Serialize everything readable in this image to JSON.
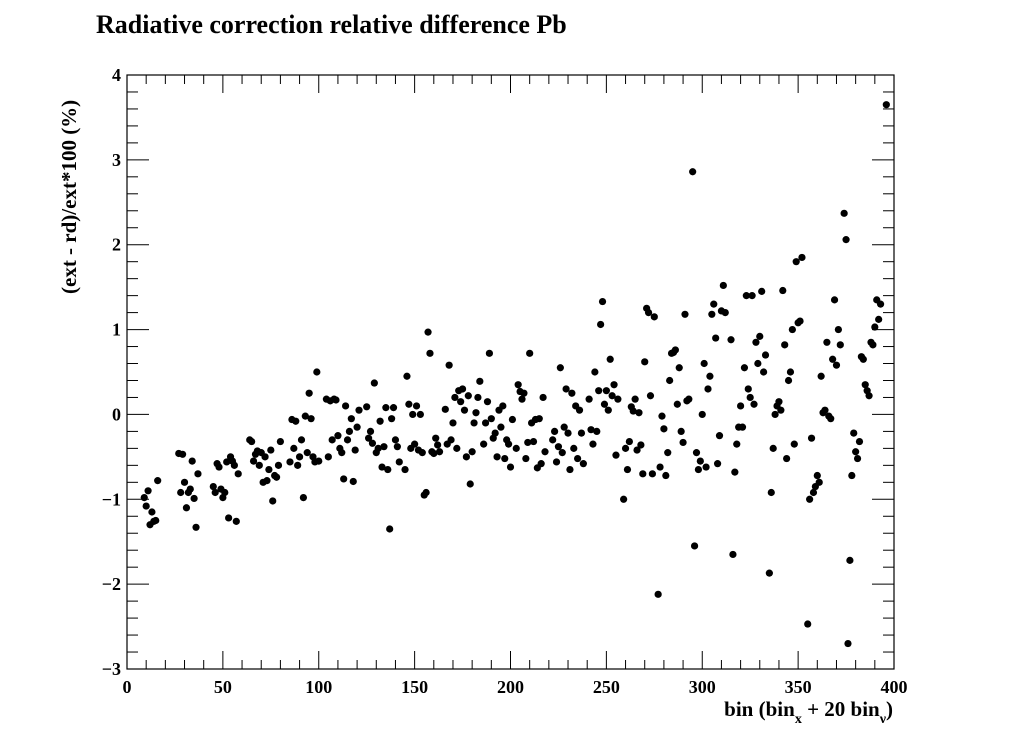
{
  "chart_data": {
    "type": "scatter",
    "title": "Radiative correction relative difference Pb",
    "xlabel": {
      "main": "bin (bin",
      "sub1": "x",
      "mid": " + 20 bin",
      "sub2": "ν",
      "end": ")"
    },
    "ylabel": "(ext - rd)/ext*100 (%)",
    "xlim": [
      0,
      400
    ],
    "ylim": [
      -3,
      4
    ],
    "xticks": [
      0,
      50,
      100,
      150,
      200,
      250,
      300,
      350,
      400
    ],
    "yticks": [
      -3,
      -2,
      -1,
      0,
      1,
      2,
      3,
      4
    ],
    "grid": false,
    "marker_color": "#000000",
    "points": [
      [
        9,
        -0.98
      ],
      [
        10,
        -1.08
      ],
      [
        11,
        -0.9
      ],
      [
        12,
        -1.3
      ],
      [
        13,
        -1.15
      ],
      [
        14,
        -1.26
      ],
      [
        15,
        -1.25
      ],
      [
        16,
        -0.78
      ],
      [
        27,
        -0.46
      ],
      [
        28,
        -0.92
      ],
      [
        29,
        -0.47
      ],
      [
        30,
        -0.8
      ],
      [
        31,
        -1.1
      ],
      [
        32,
        -0.92
      ],
      [
        33,
        -0.88
      ],
      [
        34,
        -0.55
      ],
      [
        35,
        -0.99
      ],
      [
        36,
        -1.33
      ],
      [
        37,
        -0.7
      ],
      [
        45,
        -0.85
      ],
      [
        46,
        -0.92
      ],
      [
        47,
        -0.58
      ],
      [
        48,
        -0.62
      ],
      [
        49,
        -0.88
      ],
      [
        50,
        -0.98
      ],
      [
        51,
        -0.92
      ],
      [
        52,
        -0.56
      ],
      [
        53,
        -1.22
      ],
      [
        54,
        -0.5
      ],
      [
        55,
        -0.55
      ],
      [
        56,
        -0.6
      ],
      [
        57,
        -1.26
      ],
      [
        58,
        -0.7
      ],
      [
        64,
        -0.3
      ],
      [
        65,
        -0.32
      ],
      [
        66,
        -0.55
      ],
      [
        67,
        -0.47
      ],
      [
        68,
        -0.43
      ],
      [
        69,
        -0.6
      ],
      [
        70,
        -0.45
      ],
      [
        71,
        -0.8
      ],
      [
        72,
        -0.5
      ],
      [
        73,
        -0.78
      ],
      [
        74,
        -0.65
      ],
      [
        75,
        -0.42
      ],
      [
        76,
        -1.02
      ],
      [
        77,
        -0.72
      ],
      [
        78,
        -0.74
      ],
      [
        79,
        -0.6
      ],
      [
        80,
        -0.32
      ],
      [
        85,
        -0.56
      ],
      [
        86,
        -0.06
      ],
      [
        87,
        -0.4
      ],
      [
        88,
        -0.08
      ],
      [
        89,
        -0.6
      ],
      [
        90,
        -0.5
      ],
      [
        91,
        -0.3
      ],
      [
        92,
        -0.98
      ],
      [
        93,
        -0.02
      ],
      [
        94,
        -0.45
      ],
      [
        95,
        0.25
      ],
      [
        96,
        -0.05
      ],
      [
        97,
        -0.5
      ],
      [
        98,
        -0.56
      ],
      [
        99,
        0.5
      ],
      [
        100,
        -0.55
      ],
      [
        104,
        0.18
      ],
      [
        105,
        -0.5
      ],
      [
        106,
        0.16
      ],
      [
        107,
        -0.3
      ],
      [
        108,
        0.18
      ],
      [
        109,
        0.17
      ],
      [
        110,
        -0.25
      ],
      [
        111,
        -0.4
      ],
      [
        112,
        -0.45
      ],
      [
        113,
        -0.76
      ],
      [
        114,
        0.1
      ],
      [
        115,
        -0.3
      ],
      [
        116,
        -0.2
      ],
      [
        117,
        -0.05
      ],
      [
        118,
        -0.79
      ],
      [
        119,
        -0.42
      ],
      [
        120,
        -0.15
      ],
      [
        121,
        0.05
      ],
      [
        125,
        0.09
      ],
      [
        126,
        -0.28
      ],
      [
        127,
        -0.2
      ],
      [
        128,
        -0.34
      ],
      [
        129,
        0.37
      ],
      [
        130,
        -0.45
      ],
      [
        131,
        -0.4
      ],
      [
        132,
        -0.08
      ],
      [
        133,
        -0.62
      ],
      [
        134,
        -0.38
      ],
      [
        135,
        0.08
      ],
      [
        136,
        -0.65
      ],
      [
        137,
        -1.35
      ],
      [
        138,
        -0.05
      ],
      [
        139,
        0.08
      ],
      [
        140,
        -0.3
      ],
      [
        141,
        -0.38
      ],
      [
        142,
        -0.56
      ],
      [
        145,
        -0.65
      ],
      [
        146,
        0.45
      ],
      [
        147,
        0.12
      ],
      [
        148,
        -0.4
      ],
      [
        149,
        0.0
      ],
      [
        150,
        -0.35
      ],
      [
        151,
        0.1
      ],
      [
        152,
        -0.42
      ],
      [
        153,
        0.0
      ],
      [
        154,
        -0.45
      ],
      [
        155,
        -0.95
      ],
      [
        156,
        -0.92
      ],
      [
        157,
        0.97
      ],
      [
        158,
        0.72
      ],
      [
        159,
        -0.44
      ],
      [
        160,
        -0.46
      ],
      [
        161,
        -0.28
      ],
      [
        162,
        -0.36
      ],
      [
        163,
        -0.44
      ],
      [
        166,
        0.06
      ],
      [
        167,
        -0.35
      ],
      [
        168,
        0.58
      ],
      [
        169,
        -0.3
      ],
      [
        170,
        -0.1
      ],
      [
        171,
        0.2
      ],
      [
        172,
        -0.4
      ],
      [
        173,
        0.28
      ],
      [
        174,
        0.15
      ],
      [
        175,
        0.3
      ],
      [
        176,
        0.05
      ],
      [
        177,
        -0.5
      ],
      [
        178,
        0.22
      ],
      [
        179,
        -0.82
      ],
      [
        180,
        -0.44
      ],
      [
        181,
        -0.1
      ],
      [
        182,
        0.02
      ],
      [
        183,
        0.2
      ],
      [
        184,
        0.39
      ],
      [
        186,
        -0.35
      ],
      [
        187,
        -0.1
      ],
      [
        188,
        0.15
      ],
      [
        189,
        0.72
      ],
      [
        190,
        -0.05
      ],
      [
        191,
        -0.28
      ],
      [
        192,
        -0.22
      ],
      [
        193,
        -0.5
      ],
      [
        194,
        0.05
      ],
      [
        195,
        -0.15
      ],
      [
        196,
        0.1
      ],
      [
        197,
        -0.52
      ],
      [
        198,
        -0.3
      ],
      [
        199,
        -0.35
      ],
      [
        200,
        -0.62
      ],
      [
        201,
        -0.06
      ],
      [
        203,
        -0.4
      ],
      [
        204,
        0.35
      ],
      [
        205,
        0.27
      ],
      [
        206,
        0.18
      ],
      [
        207,
        0.25
      ],
      [
        208,
        -0.52
      ],
      [
        209,
        -0.33
      ],
      [
        210,
        0.72
      ],
      [
        211,
        -0.1
      ],
      [
        212,
        -0.32
      ],
      [
        213,
        -0.06
      ],
      [
        214,
        -0.63
      ],
      [
        215,
        -0.05
      ],
      [
        216,
        -0.58
      ],
      [
        217,
        0.2
      ],
      [
        218,
        -0.44
      ],
      [
        222,
        -0.3
      ],
      [
        223,
        -0.2
      ],
      [
        224,
        -0.56
      ],
      [
        225,
        -0.38
      ],
      [
        226,
        0.55
      ],
      [
        227,
        -0.45
      ],
      [
        228,
        -0.15
      ],
      [
        229,
        0.3
      ],
      [
        230,
        -0.22
      ],
      [
        231,
        -0.65
      ],
      [
        232,
        0.25
      ],
      [
        233,
        -0.4
      ],
      [
        234,
        0.1
      ],
      [
        235,
        -0.52
      ],
      [
        236,
        0.05
      ],
      [
        237,
        -0.22
      ],
      [
        238,
        -0.58
      ],
      [
        241,
        0.18
      ],
      [
        242,
        -0.18
      ],
      [
        243,
        -0.35
      ],
      [
        244,
        0.5
      ],
      [
        245,
        -0.2
      ],
      [
        246,
        0.28
      ],
      [
        247,
        1.06
      ],
      [
        248,
        1.33
      ],
      [
        249,
        0.12
      ],
      [
        250,
        0.28
      ],
      [
        251,
        0.05
      ],
      [
        252,
        0.65
      ],
      [
        253,
        0.22
      ],
      [
        254,
        0.35
      ],
      [
        255,
        -0.48
      ],
      [
        256,
        0.18
      ],
      [
        259,
        -1.0
      ],
      [
        260,
        -0.4
      ],
      [
        261,
        -0.65
      ],
      [
        262,
        -0.32
      ],
      [
        263,
        0.09
      ],
      [
        264,
        0.04
      ],
      [
        265,
        0.18
      ],
      [
        266,
        -0.42
      ],
      [
        267,
        0.02
      ],
      [
        268,
        -0.36
      ],
      [
        269,
        -0.7
      ],
      [
        270,
        0.62
      ],
      [
        271,
        1.25
      ],
      [
        272,
        1.2
      ],
      [
        273,
        0.22
      ],
      [
        274,
        -0.7
      ],
      [
        275,
        1.15
      ],
      [
        277,
        -2.12
      ],
      [
        278,
        -0.62
      ],
      [
        279,
        -0.02
      ],
      [
        280,
        -0.17
      ],
      [
        281,
        -0.72
      ],
      [
        282,
        -0.45
      ],
      [
        283,
        0.4
      ],
      [
        284,
        0.72
      ],
      [
        285,
        0.73
      ],
      [
        286,
        0.76
      ],
      [
        287,
        0.12
      ],
      [
        288,
        0.55
      ],
      [
        289,
        -0.2
      ],
      [
        290,
        -0.33
      ],
      [
        291,
        1.18
      ],
      [
        292,
        0.16
      ],
      [
        293,
        0.18
      ],
      [
        295,
        2.86
      ],
      [
        296,
        -1.55
      ],
      [
        297,
        -0.45
      ],
      [
        298,
        -0.65
      ],
      [
        299,
        -0.55
      ],
      [
        300,
        0.0
      ],
      [
        301,
        0.6
      ],
      [
        302,
        -0.62
      ],
      [
        303,
        0.3
      ],
      [
        304,
        0.45
      ],
      [
        305,
        1.18
      ],
      [
        306,
        1.3
      ],
      [
        307,
        0.9
      ],
      [
        308,
        -0.58
      ],
      [
        309,
        -0.25
      ],
      [
        310,
        1.22
      ],
      [
        311,
        1.52
      ],
      [
        312,
        1.2
      ],
      [
        315,
        0.88
      ],
      [
        316,
        -1.65
      ],
      [
        317,
        -0.68
      ],
      [
        318,
        -0.35
      ],
      [
        319,
        -0.15
      ],
      [
        320,
        0.1
      ],
      [
        321,
        -0.15
      ],
      [
        322,
        0.55
      ],
      [
        323,
        1.4
      ],
      [
        324,
        0.3
      ],
      [
        325,
        0.2
      ],
      [
        326,
        1.4
      ],
      [
        327,
        0.12
      ],
      [
        328,
        0.85
      ],
      [
        329,
        0.6
      ],
      [
        330,
        0.92
      ],
      [
        331,
        1.45
      ],
      [
        332,
        0.5
      ],
      [
        333,
        0.7
      ],
      [
        335,
        -1.87
      ],
      [
        336,
        -0.92
      ],
      [
        337,
        -0.4
      ],
      [
        338,
        0.0
      ],
      [
        339,
        0.1
      ],
      [
        340,
        0.15
      ],
      [
        341,
        0.05
      ],
      [
        342,
        1.46
      ],
      [
        343,
        0.82
      ],
      [
        344,
        -0.52
      ],
      [
        345,
        0.4
      ],
      [
        346,
        0.5
      ],
      [
        347,
        1.0
      ],
      [
        348,
        -0.35
      ],
      [
        349,
        1.8
      ],
      [
        350,
        1.08
      ],
      [
        351,
        1.1
      ],
      [
        352,
        1.85
      ],
      [
        355,
        -2.47
      ],
      [
        356,
        -1.0
      ],
      [
        357,
        -0.28
      ],
      [
        358,
        -0.92
      ],
      [
        359,
        -0.85
      ],
      [
        360,
        -0.72
      ],
      [
        361,
        -0.8
      ],
      [
        362,
        0.45
      ],
      [
        363,
        0.02
      ],
      [
        364,
        0.05
      ],
      [
        365,
        0.85
      ],
      [
        366,
        -0.02
      ],
      [
        367,
        -0.05
      ],
      [
        368,
        0.65
      ],
      [
        369,
        1.35
      ],
      [
        370,
        0.58
      ],
      [
        371,
        1.0
      ],
      [
        372,
        0.82
      ],
      [
        374,
        2.37
      ],
      [
        375,
        2.06
      ],
      [
        376,
        -2.7
      ],
      [
        377,
        -1.72
      ],
      [
        378,
        -0.72
      ],
      [
        379,
        -0.22
      ],
      [
        380,
        -0.44
      ],
      [
        381,
        -0.52
      ],
      [
        382,
        -0.32
      ],
      [
        383,
        0.68
      ],
      [
        384,
        0.65
      ],
      [
        385,
        0.35
      ],
      [
        386,
        0.28
      ],
      [
        387,
        0.22
      ],
      [
        388,
        0.85
      ],
      [
        389,
        0.82
      ],
      [
        390,
        1.03
      ],
      [
        391,
        1.35
      ],
      [
        392,
        1.12
      ],
      [
        393,
        1.3
      ],
      [
        396,
        3.65
      ]
    ]
  }
}
